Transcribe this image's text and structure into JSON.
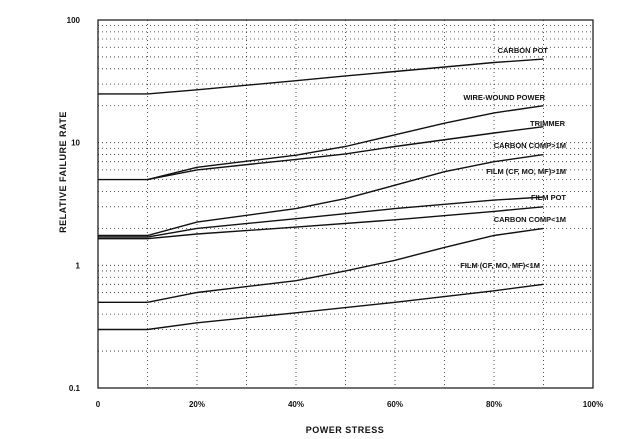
{
  "chart_data": {
    "type": "line",
    "title": "",
    "xlabel": "POWER STRESS",
    "ylabel": "RELATIVE FAILURE RATE",
    "xlim": [
      0,
      100
    ],
    "ylim": [
      0.1,
      100
    ],
    "y_scale": "log",
    "grid": true,
    "x_ticks": [
      {
        "value": 0,
        "label": "0"
      },
      {
        "value": 20,
        "label": "20%"
      },
      {
        "value": 40,
        "label": "40%"
      },
      {
        "value": 60,
        "label": "60%"
      },
      {
        "value": 80,
        "label": "80%"
      },
      {
        "value": 100,
        "label": "100%"
      }
    ],
    "y_ticks": [
      {
        "value": 0.1,
        "label": "0.1"
      },
      {
        "value": 1,
        "label": "1"
      },
      {
        "value": 10,
        "label": "10"
      },
      {
        "value": 100,
        "label": "100"
      }
    ],
    "series": [
      {
        "name": "CARBON POT",
        "x": [
          0,
          10,
          20,
          40,
          50,
          60,
          80,
          90
        ],
        "y": [
          25,
          25,
          27,
          32,
          35,
          38,
          45,
          48
        ]
      },
      {
        "name": "WIRE-WOUND POWER",
        "x": [
          10,
          20,
          40,
          50,
          60,
          70,
          80,
          90
        ],
        "y": [
          5,
          6.3,
          7.9,
          9.3,
          11.6,
          14.4,
          17.5,
          20
        ]
      },
      {
        "name": "TRIMMER",
        "x": [
          0,
          10,
          20,
          40,
          50,
          60,
          80,
          90
        ],
        "y": [
          5,
          5,
          6,
          7.3,
          8.1,
          9.3,
          12,
          13.5
        ]
      },
      {
        "name": "CARBON COMP>1M",
        "x": [
          0,
          10,
          20,
          40,
          50,
          60,
          70,
          80,
          90
        ],
        "y": [
          1.75,
          1.75,
          2.25,
          2.9,
          3.5,
          4.5,
          5.8,
          7,
          8
        ]
      },
      {
        "name": "FILM (CF, MO, MF)>1M",
        "x": [
          0,
          10,
          20,
          40,
          60,
          80,
          90
        ],
        "y": [
          1.7,
          1.7,
          2,
          2.4,
          2.9,
          3.4,
          3.6
        ]
      },
      {
        "name": "FILM POT",
        "x": [
          0,
          10,
          20,
          40,
          60,
          80,
          90
        ],
        "y": [
          1.65,
          1.65,
          1.8,
          2.05,
          2.35,
          2.75,
          3
        ]
      },
      {
        "name": "CARBON COMP<1M",
        "x": [
          0,
          10,
          20,
          40,
          50,
          60,
          70,
          80,
          90
        ],
        "y": [
          0.5,
          0.5,
          0.6,
          0.75,
          0.9,
          1.1,
          1.4,
          1.75,
          2
        ]
      },
      {
        "name": "FILM (CF, MO, MF)<1M",
        "x": [
          0,
          10,
          20,
          40,
          60,
          80,
          90
        ],
        "y": [
          0.3,
          0.3,
          0.34,
          0.41,
          0.5,
          0.62,
          0.7
        ]
      }
    ],
    "series_labels": [
      {
        "text": "CARBON POT",
        "series": 0
      },
      {
        "text": "WIRE-WOUND POWER",
        "series": 1
      },
      {
        "text": "TRIMMER",
        "series": 2
      },
      {
        "text": "CARBON COMP>1M",
        "series": 3
      },
      {
        "text": "FILM (CF, MO, MF)>1M",
        "series": 4
      },
      {
        "text": "FILM POT",
        "series": 5
      },
      {
        "text": "CARBON COMP<1M",
        "series": 6
      },
      {
        "text": "FILM (CF, MO, MF)<1M",
        "series": 7
      }
    ]
  }
}
